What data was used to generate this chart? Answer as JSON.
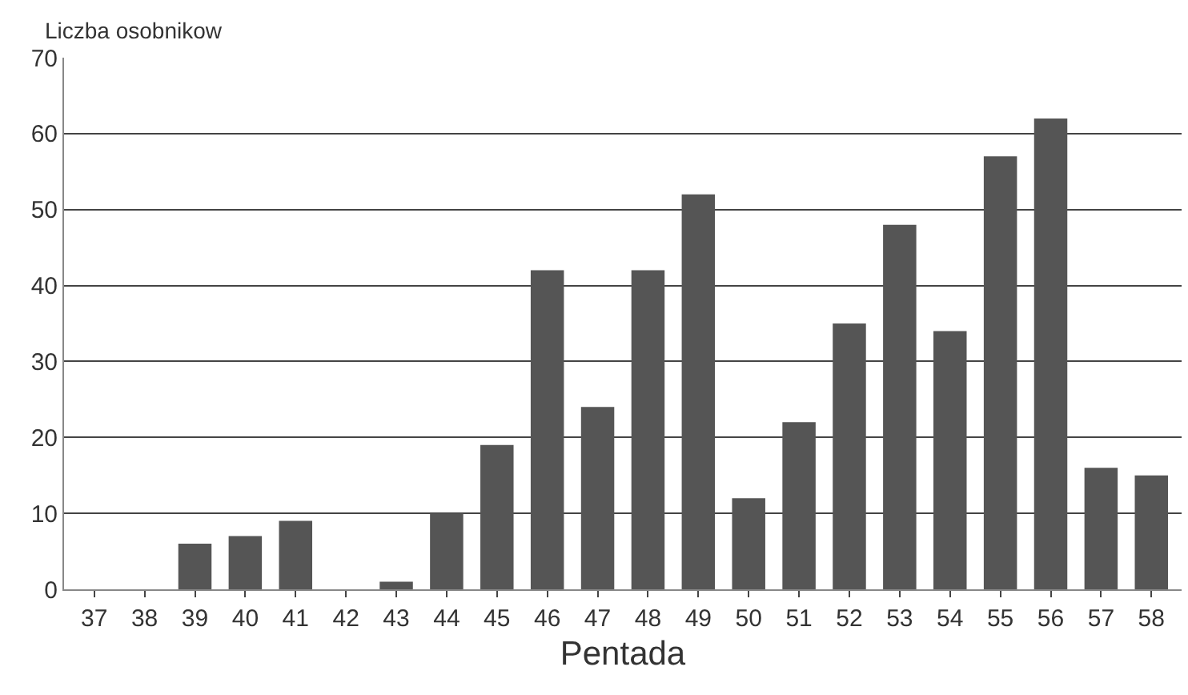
{
  "chart_data": {
    "type": "bar",
    "ylabel": "Liczba osobnikow",
    "xlabel": "Pentada",
    "categories": [
      "37",
      "38",
      "39",
      "40",
      "41",
      "42",
      "43",
      "44",
      "45",
      "46",
      "47",
      "48",
      "49",
      "50",
      "51",
      "52",
      "53",
      "54",
      "55",
      "56",
      "57",
      "58"
    ],
    "values": [
      0,
      0,
      6,
      7,
      9,
      0,
      1,
      10,
      19,
      42,
      24,
      42,
      52,
      12,
      22,
      35,
      48,
      34,
      57,
      62,
      16,
      15
    ],
    "color": "#555555",
    "ylim": [
      0,
      70
    ],
    "yticks": [
      0,
      10,
      20,
      30,
      40,
      50,
      60,
      70
    ],
    "grid": "y"
  }
}
